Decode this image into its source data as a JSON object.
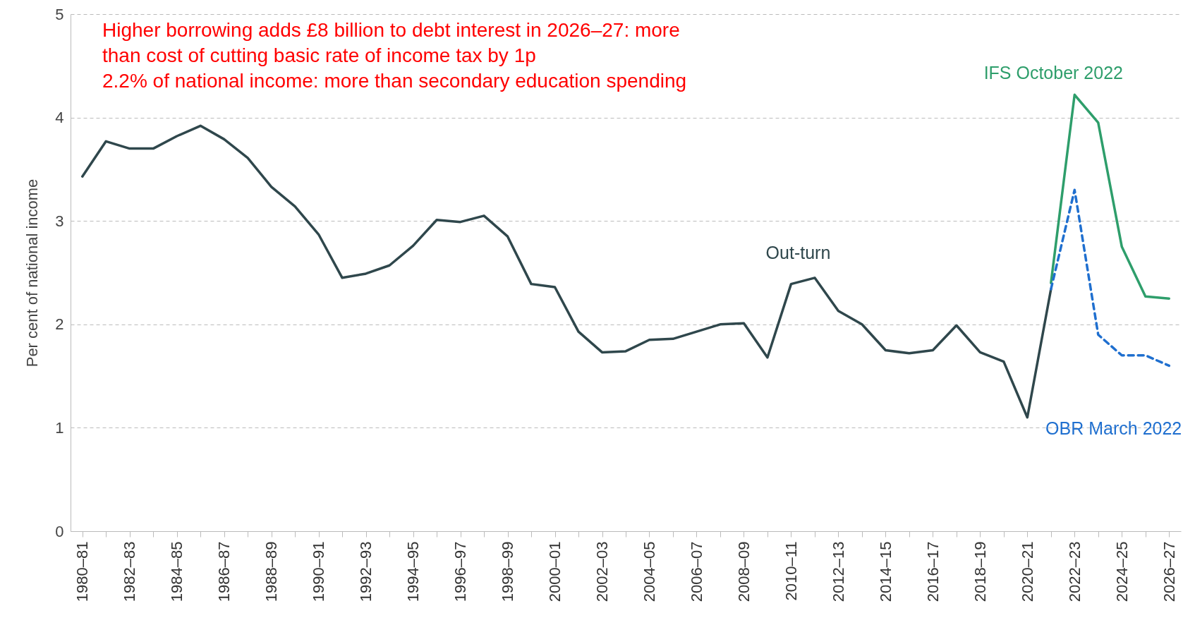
{
  "chart_data": {
    "type": "line",
    "ylabel": "Per cent of national income",
    "categories": [
      "1980–81",
      null,
      "1982–83",
      null,
      "1984–85",
      null,
      "1986–87",
      null,
      "1988–89",
      null,
      "1990–91",
      null,
      "1992–93",
      null,
      "1994–95",
      null,
      "1996–97",
      null,
      "1998–99",
      null,
      "2000–01",
      null,
      "2002–03",
      null,
      "2004–05",
      null,
      "2006–07",
      null,
      "2008–09",
      null,
      "2010–11",
      null,
      "2012–13",
      null,
      "2014–15",
      null,
      "2016–17",
      null,
      "2018–19",
      null,
      "2020–21",
      null,
      "2022–23",
      null,
      "2024–25",
      null,
      "2026–27"
    ],
    "series": [
      {
        "name": "Out-turn",
        "color": "#2f474c",
        "line_style": "solid",
        "values": [
          3.43,
          3.77,
          3.7,
          3.7,
          3.82,
          3.92,
          3.79,
          3.61,
          3.33,
          3.14,
          2.87,
          2.45,
          2.49,
          2.57,
          2.76,
          3.01,
          2.99,
          3.05,
          2.85,
          2.39,
          2.36,
          1.93,
          1.73,
          1.74,
          1.85,
          1.86,
          1.93,
          2.0,
          2.01,
          1.68,
          2.39,
          2.45,
          2.13,
          2.0,
          1.75,
          1.72,
          1.75,
          1.99,
          1.73,
          1.64,
          1.1,
          2.34,
          null,
          null,
          null,
          null,
          null
        ]
      },
      {
        "name": "IFS October 2022",
        "color": "#2e9e6b",
        "line_style": "solid",
        "values": [
          null,
          null,
          null,
          null,
          null,
          null,
          null,
          null,
          null,
          null,
          null,
          null,
          null,
          null,
          null,
          null,
          null,
          null,
          null,
          null,
          null,
          null,
          null,
          null,
          null,
          null,
          null,
          null,
          null,
          null,
          null,
          null,
          null,
          null,
          null,
          null,
          null,
          null,
          null,
          null,
          null,
          2.4,
          4.22,
          3.95,
          2.75,
          2.27,
          2.25
        ]
      },
      {
        "name": "OBR March 2022",
        "color": "#1f6fcf",
        "line_style": "dashed",
        "values": [
          null,
          null,
          null,
          null,
          null,
          null,
          null,
          null,
          null,
          null,
          null,
          null,
          null,
          null,
          null,
          null,
          null,
          null,
          null,
          null,
          null,
          null,
          null,
          null,
          null,
          null,
          null,
          null,
          null,
          null,
          null,
          null,
          null,
          null,
          null,
          null,
          null,
          null,
          null,
          null,
          null,
          2.34,
          3.3,
          1.9,
          1.7,
          1.7,
          1.6
        ]
      }
    ],
    "ylim": [
      0,
      5
    ],
    "yticks": [
      0,
      1,
      2,
      3,
      4,
      5
    ],
    "grid": "y",
    "annotations": [
      "Higher borrowing adds £8 billion to debt interest in 2026–27: more",
      "than cost of cutting basic rate of income tax by 1p",
      "2.2% of national income: more than secondary education spending"
    ]
  }
}
